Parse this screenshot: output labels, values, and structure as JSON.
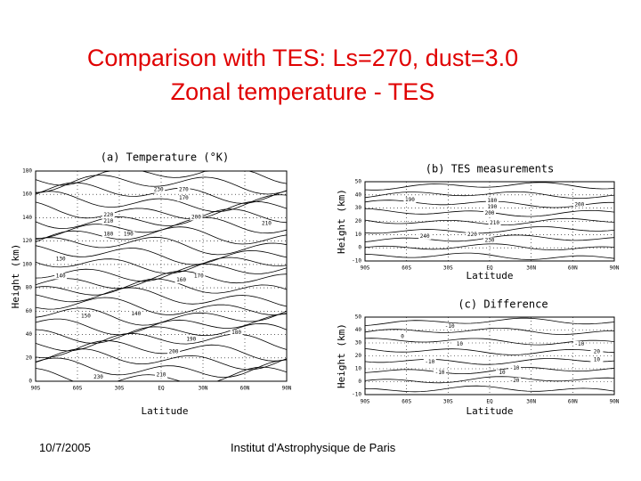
{
  "slide": {
    "title": [
      "Comparison with TES: Ls=270, dust=3.0",
      "Zonal temperature - TES"
    ],
    "footer": {
      "date": "10/7/2005",
      "institution": "Institut d'Astrophysique de Paris"
    }
  },
  "panels": [
    {
      "title": "(a) Temperature (°K)",
      "x_label": "Latitude",
      "y_label": "Height (km)",
      "x_ticks": [
        "90S",
        "60S",
        "30S",
        "EQ",
        "30N",
        "60N",
        "90N"
      ],
      "y_ticks": [
        "0",
        "20",
        "40",
        "60",
        "80",
        "100",
        "120",
        "140",
        "160",
        "180"
      ],
      "contour_labels": [
        "230",
        "270",
        "170",
        "220",
        "210",
        "200",
        "190",
        "180",
        "210",
        "130",
        "140",
        "160",
        "170",
        "150",
        "180",
        "140",
        "190",
        "200",
        "230",
        "210"
      ]
    },
    {
      "title": "(b) TES measurements",
      "x_label": "Latitude",
      "y_label": "Height (km)",
      "x_ticks": [
        "90S",
        "60S",
        "30S",
        "EQ",
        "30N",
        "60N",
        "90N"
      ],
      "y_ticks": [
        "-10",
        "0",
        "10",
        "20",
        "30",
        "40",
        "50"
      ],
      "contour_labels": [
        "190",
        "180",
        "190",
        "200",
        "210",
        "200",
        "220",
        "240",
        "230"
      ]
    },
    {
      "title": "(c) Difference",
      "x_label": "Latitude",
      "y_label": "Height (km)",
      "x_ticks": [
        "90S",
        "60S",
        "30S",
        "EQ",
        "30N",
        "60N",
        "90N"
      ],
      "y_ticks": [
        "-10",
        "0",
        "10",
        "20",
        "30",
        "40",
        "50"
      ],
      "contour_labels": [
        "-10",
        "0",
        "10",
        "-10",
        "10",
        "-10",
        "-10",
        "-20",
        "20",
        "10",
        "-10"
      ]
    }
  ]
}
